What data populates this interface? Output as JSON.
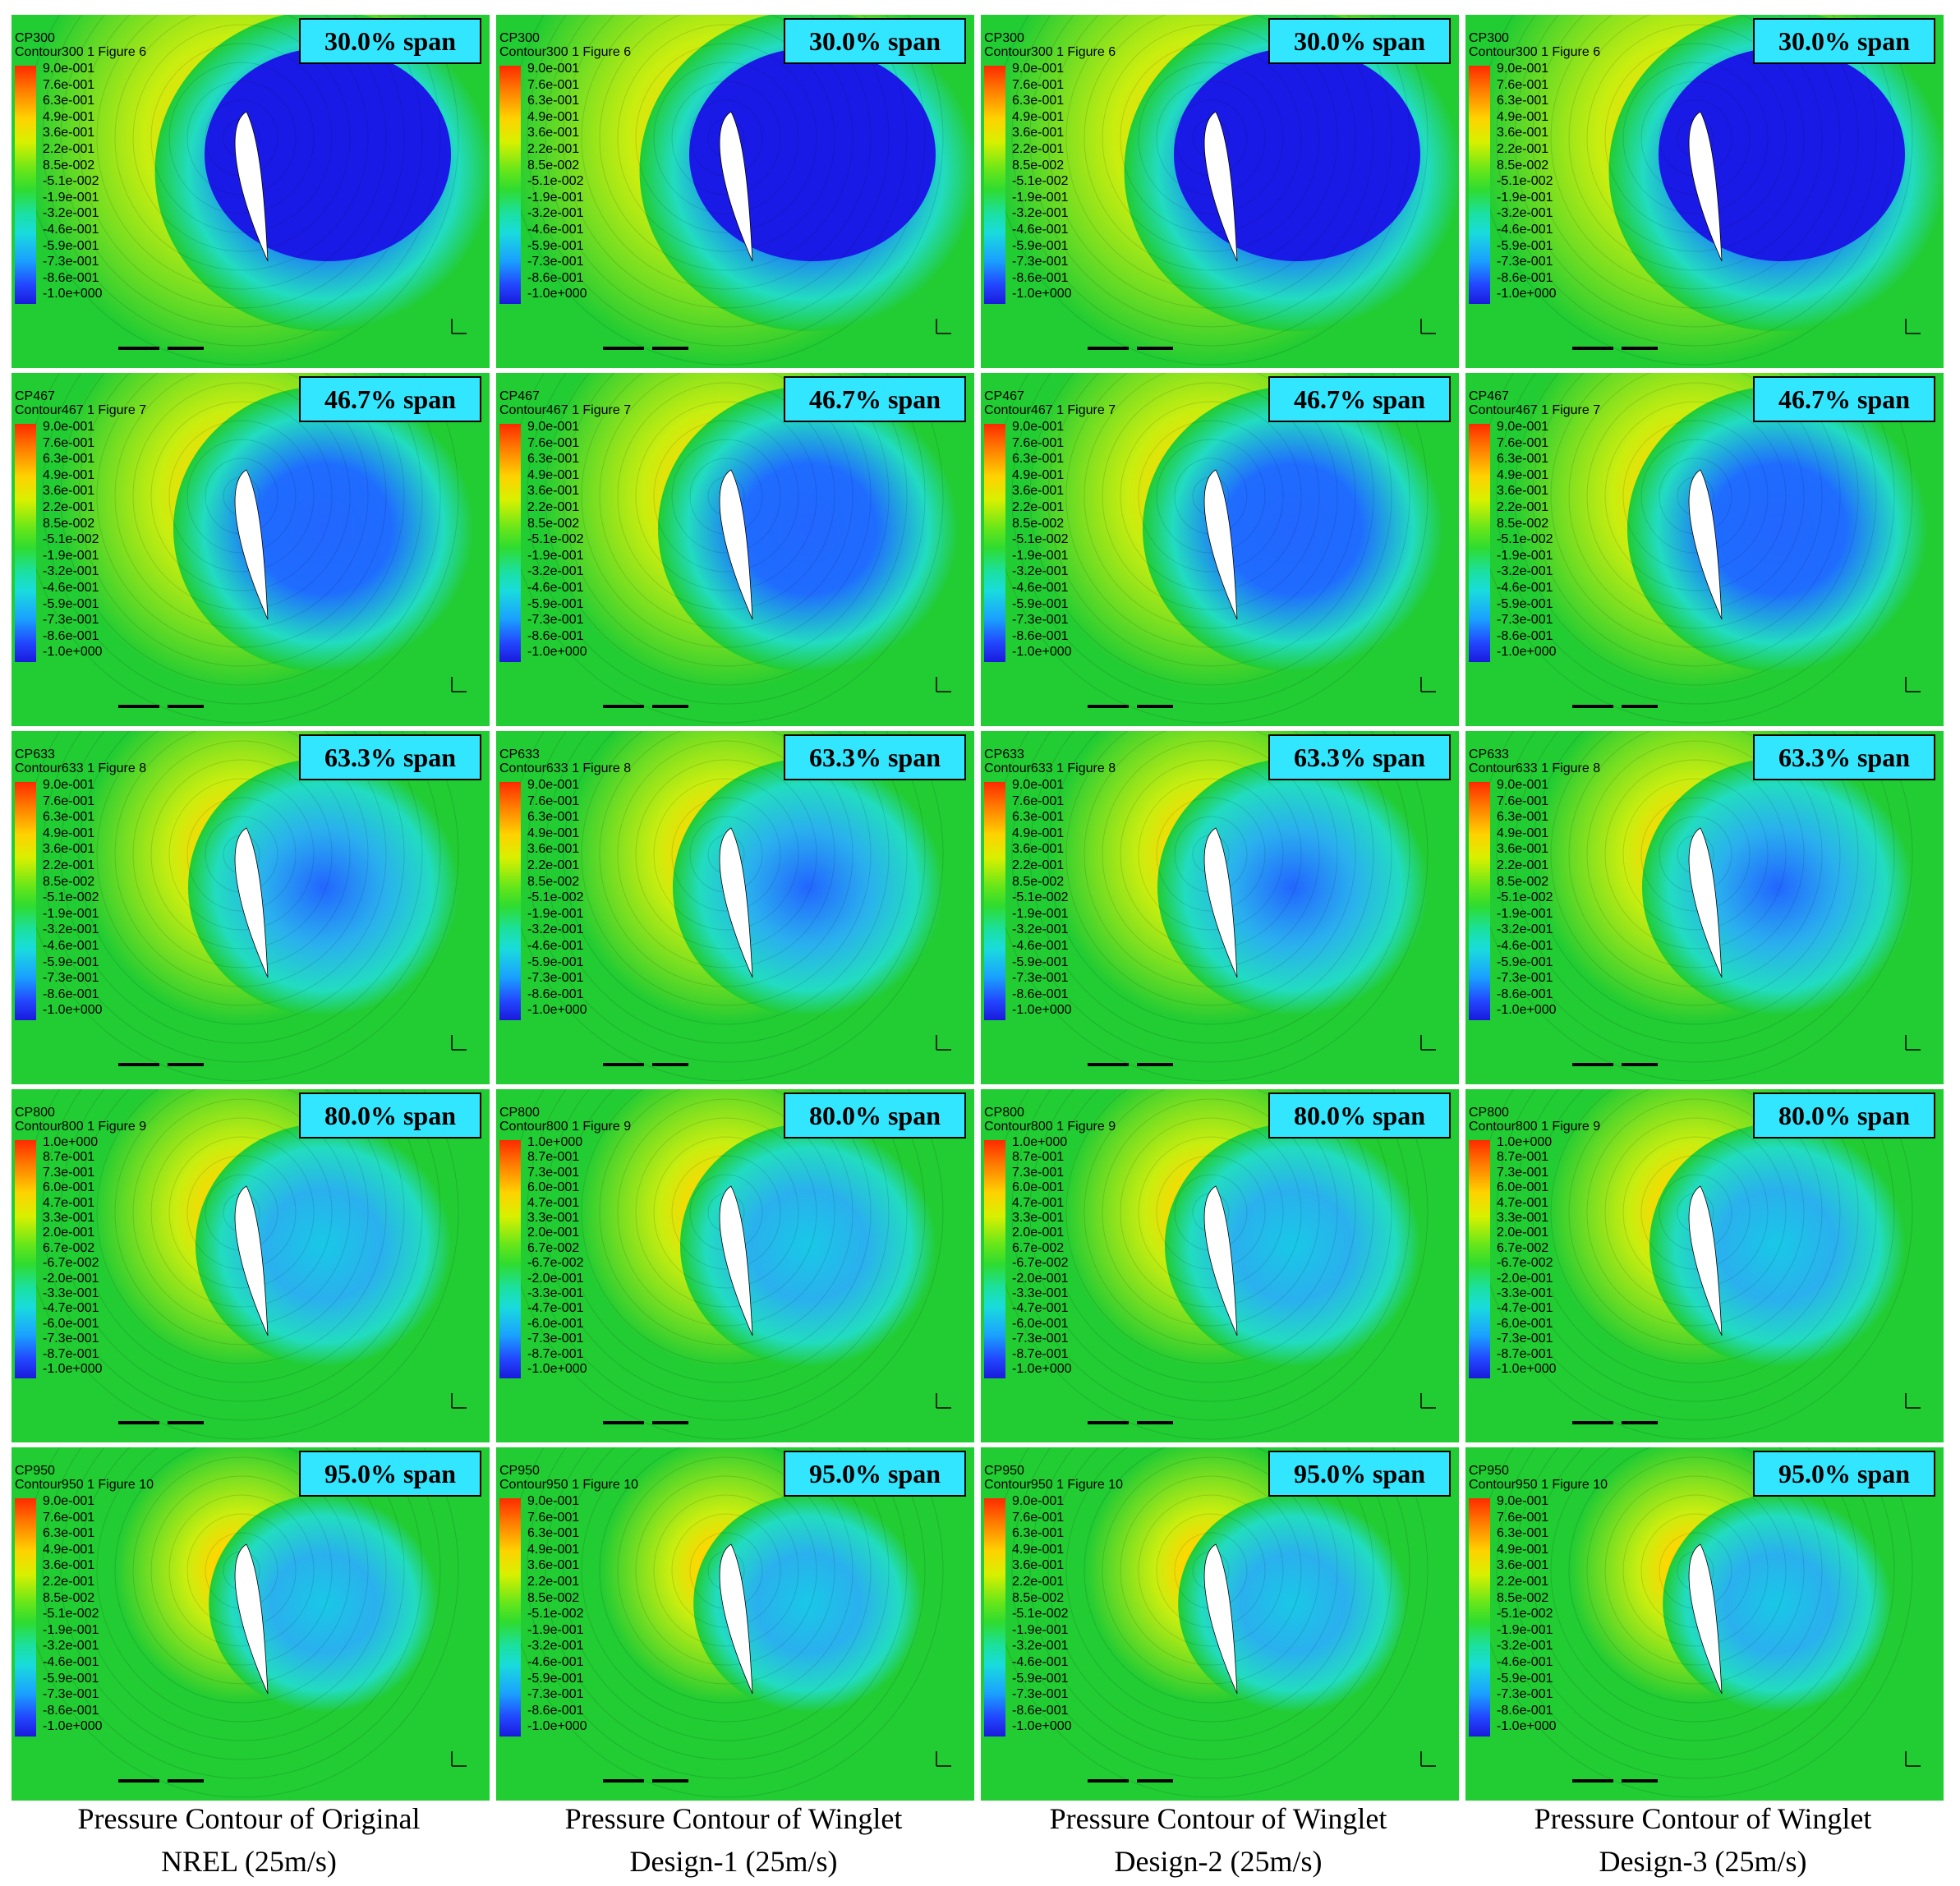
{
  "columns": [
    {
      "caption_line1": "Pressure Contour of Original",
      "caption_line2": "NREL (25m/s)"
    },
    {
      "caption_line1": "Pressure Contour of Winglet",
      "caption_line2": "Design-1 (25m/s)"
    },
    {
      "caption_line1": "Pressure Contour of Winglet",
      "caption_line2": "Design-2 (25m/s)"
    },
    {
      "caption_line1": "Pressure Contour of Winglet",
      "caption_line2": "Design-3 (25m/s)"
    }
  ],
  "rows": [
    {
      "span_label": "30.0% span",
      "var": "CP300",
      "contour": "Contour300 1 Figure 6",
      "suction": 0.95,
      "legend": [
        "9.0e-001",
        "7.6e-001",
        "6.3e-001",
        "4.9e-001",
        "3.6e-001",
        "2.2e-001",
        "8.5e-002",
        "-5.1e-002",
        "-1.9e-001",
        "-3.2e-001",
        "-4.6e-001",
        "-5.9e-001",
        "-7.3e-001",
        "-8.6e-001",
        "-1.0e+000"
      ]
    },
    {
      "span_label": "46.7% span",
      "var": "CP467",
      "contour": "Contour467 1 Figure 7",
      "suction": 0.7,
      "legend": [
        "9.0e-001",
        "7.6e-001",
        "6.3e-001",
        "4.9e-001",
        "3.6e-001",
        "2.2e-001",
        "8.5e-002",
        "-5.1e-002",
        "-1.9e-001",
        "-3.2e-001",
        "-4.6e-001",
        "-5.9e-001",
        "-7.3e-001",
        "-8.6e-001",
        "-1.0e+000"
      ]
    },
    {
      "span_label": "63.3% span",
      "var": "CP633",
      "contour": "Contour633 1 Figure 8",
      "suction": 0.5,
      "legend": [
        "9.0e-001",
        "7.6e-001",
        "6.3e-001",
        "4.9e-001",
        "3.6e-001",
        "2.2e-001",
        "8.5e-002",
        "-5.1e-002",
        "-1.9e-001",
        "-3.2e-001",
        "-4.6e-001",
        "-5.9e-001",
        "-7.3e-001",
        "-8.6e-001",
        "-1.0e+000"
      ]
    },
    {
      "span_label": "80.0% span",
      "var": "CP800",
      "contour": "Contour800 1 Figure 9",
      "suction": 0.4,
      "legend": [
        "1.0e+000",
        "8.7e-001",
        "7.3e-001",
        "6.0e-001",
        "4.7e-001",
        "3.3e-001",
        "2.0e-001",
        "6.7e-002",
        "-6.7e-002",
        "-2.0e-001",
        "-3.3e-001",
        "-4.7e-001",
        "-6.0e-001",
        "-7.3e-001",
        "-8.7e-001",
        "-1.0e+000"
      ]
    },
    {
      "span_label": "95.0% span",
      "var": "CP950",
      "contour": "Contour950 1 Figure 10",
      "suction": 0.22,
      "legend": [
        "9.0e-001",
        "7.6e-001",
        "6.3e-001",
        "4.9e-001",
        "3.6e-001",
        "2.2e-001",
        "8.5e-002",
        "-5.1e-002",
        "-1.9e-001",
        "-3.2e-001",
        "-4.6e-001",
        "-5.9e-001",
        "-7.3e-001",
        "-8.6e-001",
        "-1.0e+000"
      ]
    }
  ],
  "colors": {
    "background_field": "#22cc33",
    "stagnation": "#ff3a00",
    "high_pressure": "#ffd700",
    "suction_peak": "#1a1aff",
    "label_box": "#33e6ff"
  }
}
